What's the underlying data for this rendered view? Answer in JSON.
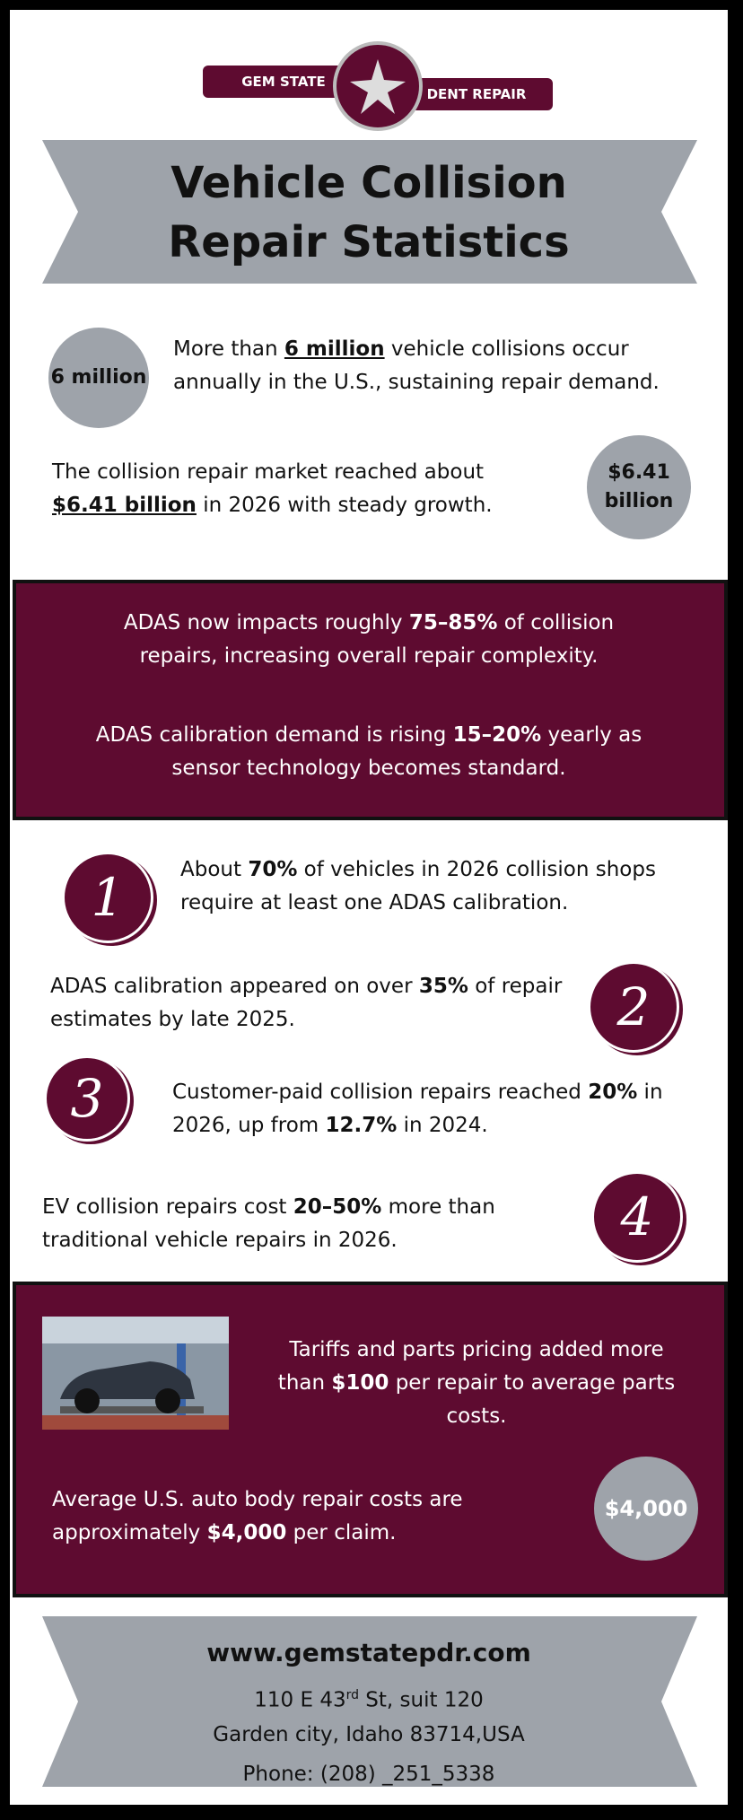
{
  "logo": {
    "left": "GEM STATE",
    "right": "DENT REPAIR"
  },
  "title": "Vehicle Collision Repair Statistics",
  "section1": {
    "items": [
      {
        "badge": "6 million",
        "parts": [
          {
            "text": "More than "
          },
          {
            "text": "6 million",
            "bold": true,
            "underline": true
          },
          {
            "text": " vehicle collisions occur annually in the U.S., sustaining repair demand."
          }
        ]
      },
      {
        "badge": "$6.41 billion",
        "parts": [
          {
            "text": "The collision repair market reached about "
          },
          {
            "text": "$6.41 billion",
            "bold": true,
            "underline": true
          },
          {
            "text": " in 2026 with steady growth."
          }
        ]
      }
    ]
  },
  "section2": {
    "paragraphs": [
      [
        {
          "text": "ADAS now impacts roughly "
        },
        {
          "text": "75–85%",
          "bold": true
        },
        {
          "text": " of collision repairs, increasing overall repair complexity."
        }
      ],
      [
        {
          "text": "ADAS calibration demand is rising "
        },
        {
          "text": "15–20%",
          "bold": true
        },
        {
          "text": " yearly as sensor technology becomes standard."
        }
      ]
    ]
  },
  "section3": {
    "items": [
      {
        "number": "1",
        "parts": [
          {
            "text": "About "
          },
          {
            "text": "70%",
            "bold": true
          },
          {
            "text": " of vehicles in 2026 collision shops require at least one ADAS calibration."
          }
        ]
      },
      {
        "number": "2",
        "parts": [
          {
            "text": "ADAS calibration appeared on over "
          },
          {
            "text": "35%",
            "bold": true
          },
          {
            "text": " of repair estimates by late 2025."
          }
        ]
      },
      {
        "number": "3",
        "parts": [
          {
            "text": "Customer-paid collision repairs reached "
          },
          {
            "text": "20%",
            "bold": true
          },
          {
            "text": " in 2026, up from "
          },
          {
            "text": "12.7%",
            "bold": true
          },
          {
            "text": " in 2024."
          }
        ]
      },
      {
        "number": "4",
        "parts": [
          {
            "text": "EV collision repairs cost "
          },
          {
            "text": "20–50%",
            "bold": true
          },
          {
            "text": " more than traditional vehicle repairs in 2026."
          }
        ]
      }
    ]
  },
  "section4": {
    "paragraphs": [
      [
        {
          "text": "Tariffs and parts pricing added more than "
        },
        {
          "text": "$100",
          "bold": true
        },
        {
          "text": " per repair to average parts costs."
        }
      ],
      [
        {
          "text": "Average U.S. auto body repair costs are approximately "
        },
        {
          "text": "$4,000",
          "bold": true
        },
        {
          "text": " per claim."
        }
      ]
    ],
    "badge": "$4,000"
  },
  "footer": {
    "website": "www.gemstatepdr.com",
    "address": [
      {
        "text": "110 E 43"
      },
      {
        "text": "rd",
        "sup": true
      },
      {
        "text": " St, suit 120"
      }
    ],
    "city": "Garden city, Idaho 83714,USA",
    "phone": "Phone: (208) _251_5338"
  }
}
